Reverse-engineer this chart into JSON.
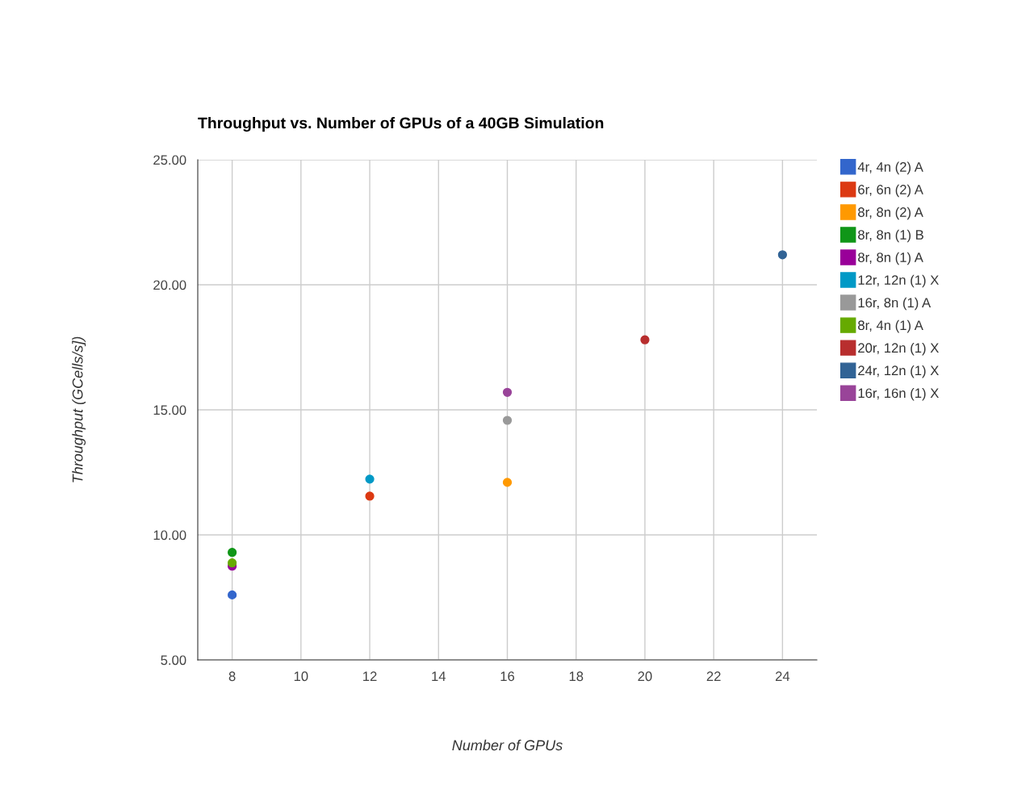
{
  "chart_data": {
    "type": "scatter",
    "title": "Throughput vs. Number of GPUs of a 40GB Simulation",
    "xlabel": "Number of GPUs",
    "ylabel": "Throughput (GCells/s])",
    "xlim": [
      7,
      25
    ],
    "xticks": [
      8,
      10,
      12,
      14,
      16,
      18,
      20,
      22,
      24
    ],
    "ylim": [
      5,
      25
    ],
    "yticks": [
      {
        "value": 5,
        "label": "5.00"
      },
      {
        "value": 10,
        "label": "10.00"
      },
      {
        "value": 15,
        "label": "15.00"
      },
      {
        "value": 20,
        "label": "20.00"
      },
      {
        "value": 25,
        "label": "25.00"
      }
    ],
    "grid": true,
    "legend": "right",
    "marker": "circle",
    "series": [
      {
        "name": "4r, 4n (2) A",
        "color": "#3366cc",
        "x": [
          8
        ],
        "values": [
          7.6
        ]
      },
      {
        "name": "6r, 6n (2) A",
        "color": "#dc3912",
        "x": [
          12
        ],
        "values": [
          11.55
        ]
      },
      {
        "name": "8r, 8n (2) A",
        "color": "#ff9900",
        "x": [
          16
        ],
        "values": [
          12.1
        ]
      },
      {
        "name": "8r, 8n (1) B",
        "color": "#109618",
        "x": [
          8
        ],
        "values": [
          9.3
        ]
      },
      {
        "name": "8r, 8n (1) A",
        "color": "#990099",
        "x": [
          8
        ],
        "values": [
          8.75
        ]
      },
      {
        "name": "12r, 12n (1) X",
        "color": "#0099c6",
        "x": [
          12
        ],
        "values": [
          12.23
        ]
      },
      {
        "name": "16r, 8n (1) A",
        "color": "#999999",
        "x": [
          16
        ],
        "values": [
          14.58
        ]
      },
      {
        "name": "8r, 4n (1) A",
        "color": "#66aa00",
        "x": [
          8
        ],
        "values": [
          8.88
        ]
      },
      {
        "name": "20r, 12n (1) X",
        "color": "#b82e2e",
        "x": [
          20
        ],
        "values": [
          17.8
        ]
      },
      {
        "name": "24r, 12n (1) X",
        "color": "#316395",
        "x": [
          24
        ],
        "values": [
          21.2
        ]
      },
      {
        "name": "16r, 16n (1) X",
        "color": "#994499",
        "x": [
          16
        ],
        "values": [
          15.7
        ]
      }
    ]
  }
}
